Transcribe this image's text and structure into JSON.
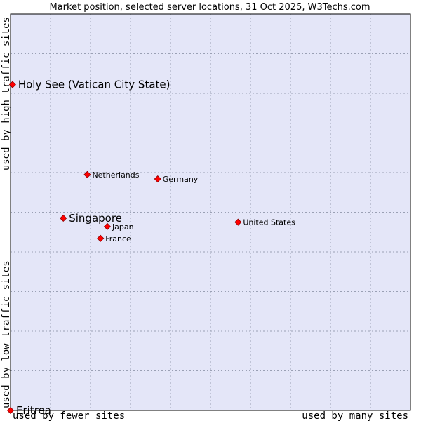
{
  "chart_data": {
    "type": "scatter",
    "title": "Market position, selected server locations, 31 Oct 2025, W3Techs.com",
    "xlabel_left": "used by fewer sites",
    "xlabel_right": "used by many sites",
    "ylabel_low": "used by low traffic sites",
    "ylabel_high": "used by high traffic sites",
    "xlim": [
      0,
      100
    ],
    "ylim": [
      0,
      100
    ],
    "grid": true,
    "background": "#e4e6f8",
    "marker_color": "#ff0000",
    "points": [
      {
        "label": "Holy See (Vatican City State)",
        "x": 0.5,
        "y": 82.2,
        "highlight": true
      },
      {
        "label": "Netherlands",
        "x": 19.2,
        "y": 59.5,
        "highlight": false
      },
      {
        "label": "Germany",
        "x": 36.8,
        "y": 58.4,
        "highlight": false
      },
      {
        "label": "Singapore",
        "x": 13.2,
        "y": 48.5,
        "highlight": true
      },
      {
        "label": "Japan",
        "x": 24.2,
        "y": 46.4,
        "highlight": false
      },
      {
        "label": "United States",
        "x": 56.9,
        "y": 47.5,
        "highlight": false
      },
      {
        "label": "France",
        "x": 22.5,
        "y": 43.4,
        "highlight": false
      },
      {
        "label": "Eritrea",
        "x": 0.0,
        "y": 0.0,
        "highlight": true
      }
    ]
  }
}
